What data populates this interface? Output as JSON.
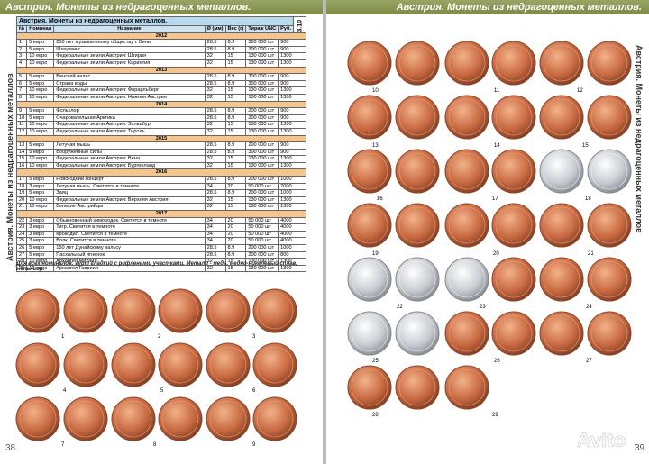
{
  "header": {
    "left_title": "Австрия. Монеты из недрагоценных металлов.",
    "right_title": "Австрия. Монеты из недрагоценных металлов."
  },
  "side_text": {
    "left": "Австрия. Монеты из недрагоценных металлов",
    "right": "Австрия. Монеты из недрагоценных металлов"
  },
  "table": {
    "title": "Австрия. Монеты из недрагоценных металлов.",
    "code": "3.10",
    "columns": [
      "№",
      "Номинал",
      "Название",
      "Ø (мм)",
      "Вес (г)",
      "Тираж UNC",
      "Руб."
    ],
    "sections": [
      {
        "year": "2012",
        "rows": [
          [
            "1",
            "5 евро",
            "200 лет музыкальному обществу г. Вены",
            "28.5",
            "8.9",
            "300 000 шт",
            "900"
          ],
          [
            "2",
            "5 евро",
            "Шладминг",
            "28.5",
            "8.9",
            "300 000 шт",
            "900"
          ],
          [
            "3",
            "10 евро",
            "Федеральные земли Австрии: Штирия",
            "32",
            "15",
            "130 000 шт",
            "1300"
          ],
          [
            "4",
            "10 евро",
            "Федеральные земли Австрии: Каринтия",
            "32",
            "15",
            "130 000 шт",
            "1300"
          ]
        ]
      },
      {
        "year": "2013",
        "rows": [
          [
            "5",
            "5 евро",
            "Венский вальс",
            "28.5",
            "8.9",
            "300 000 шт",
            "900"
          ],
          [
            "6",
            "5 евро",
            "Страна воды",
            "28.5",
            "8.9",
            "300 000 шт",
            "900"
          ],
          [
            "7",
            "10 евро",
            "Федеральные земли Австрии: Форарльберг",
            "32",
            "15",
            "130 000 шт",
            "1300"
          ],
          [
            "8",
            "10 евро",
            "Федеральные земли Австрии: Нижняя Австрия",
            "32",
            "15",
            "130 000 шт",
            "1300"
          ]
        ]
      },
      {
        "year": "2014",
        "rows": [
          [
            "9",
            "5 евро",
            "Фольклор",
            "28.5",
            "8.9",
            "200 000 шт",
            "900"
          ],
          [
            "10",
            "5 евро",
            "Очаровательная Арктика",
            "28.5",
            "8.9",
            "200 000 шт",
            "900"
          ],
          [
            "11",
            "10 евро",
            "Федеральные земли Австрии: Зальцбург",
            "32",
            "15",
            "130 000 шт",
            "1300"
          ],
          [
            "12",
            "10 евро",
            "Федеральные земли Австрии: Тироль",
            "32",
            "15",
            "130 000 шт",
            "1300"
          ]
        ]
      },
      {
        "year": "2015",
        "rows": [
          [
            "13",
            "5 евро",
            "Летучая мышь",
            "28.5",
            "8.9",
            "200 000 шт",
            "900"
          ],
          [
            "14",
            "5 евро",
            "Вооруженные силы",
            "28.5",
            "8.9",
            "300 000 шт",
            "900"
          ],
          [
            "15",
            "10 евро",
            "Федеральные земли Австрии: Вена",
            "32",
            "15",
            "130 000 шт",
            "1300"
          ],
          [
            "16",
            "10 евро",
            "Федеральные земли Австрии: Бургенланд",
            "32",
            "15",
            "130 000 шт",
            "1300"
          ]
        ]
      },
      {
        "year": "2016",
        "rows": [
          [
            "17",
            "5 евро",
            "Новогодний концерт",
            "28.5",
            "8.9",
            "200 000 шт",
            "1000"
          ],
          [
            "18",
            "3 евро",
            "Летучая мышь. Светится в темноте",
            "34",
            "20",
            "50 000 шт",
            "7000"
          ],
          [
            "19",
            "5 евро",
            "Заяц",
            "28.5",
            "8.9",
            "200 000 шт",
            "1000"
          ],
          [
            "20",
            "10 евро",
            "Федеральные земли Австрии: Верхняя Австрия",
            "32",
            "15",
            "130 000 шт",
            "1300"
          ],
          [
            "21",
            "10 евро",
            "Великие Австрийцы",
            "32",
            "15",
            "130 000 шт",
            "1300"
          ]
        ]
      },
      {
        "year": "2017",
        "rows": [
          [
            "22",
            "3 евро",
            "Обыкновенный зимородок. Светится в темноте",
            "34",
            "20",
            "50 000 шт",
            "4000"
          ],
          [
            "23",
            "3 евро",
            "Тигр. Светится в темноте",
            "34",
            "20",
            "50 000 шт",
            "4000"
          ],
          [
            "24",
            "3 евро",
            "Крокодил. Светится в темноте",
            "34",
            "20",
            "50 000 шт",
            "4000"
          ],
          [
            "25",
            "3 евро",
            "Волк. Светится в темноте",
            "34",
            "20",
            "50 000 шт",
            "4000"
          ],
          [
            "26",
            "5 евро",
            "150 лет Дунайскому вальсу",
            "28.5",
            "8.9",
            "200 000 шт",
            "1000"
          ],
          [
            "27",
            "5 евро",
            "Пасхальный ягненок",
            "28.5",
            "8.9",
            "200 000 шт",
            "800"
          ],
          [
            "28",
            "10 евро",
            "Архангел Михаил",
            "32",
            "15",
            "130 000 шт",
            "1300"
          ],
          [
            "29",
            "10 евро",
            "Архангел Гавриил",
            "32",
            "15",
            "130 000 шт",
            "1300"
          ]
        ]
      }
    ]
  },
  "footnote": "Для всех номиналов: гурт гладкий с рифлеными участками. Металл - медь, медно-никелевый сплав, мельхиор.",
  "coin_labels": {
    "left": [
      "1",
      "2",
      "3",
      "4",
      "5",
      "6",
      "7",
      "8",
      "9"
    ],
    "right": [
      "10",
      "11",
      "12",
      "13",
      "14",
      "15",
      "16",
      "17",
      "18",
      "19",
      "20",
      "21",
      "22",
      "23",
      "24",
      "25",
      "26",
      "27",
      "28",
      "29"
    ]
  },
  "page_numbers": {
    "left": "38",
    "right": "39"
  },
  "watermark": "Avito"
}
